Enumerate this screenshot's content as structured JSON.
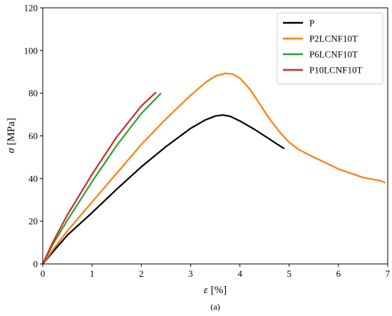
{
  "figure_label": "(a)",
  "chart_data": {
    "type": "line",
    "xlabel_symbol": "ε",
    "xlabel_unit": "[%]",
    "ylabel_symbol": "σ",
    "ylabel_unit": "[MPa]",
    "xlim": [
      0,
      7
    ],
    "ylim": [
      0,
      120
    ],
    "xticks": [
      0,
      1,
      2,
      3,
      4,
      5,
      6,
      7
    ],
    "yticks": [
      0,
      20,
      40,
      60,
      80,
      100,
      120
    ],
    "grid": false,
    "legend_position": "top-right",
    "series": [
      {
        "name": "P",
        "color": "#000000",
        "x": [
          0,
          0.2,
          0.5,
          1.0,
          1.5,
          2.0,
          2.5,
          3.0,
          3.3,
          3.5,
          3.65,
          3.8,
          4.0,
          4.3,
          4.6,
          4.9
        ],
        "y": [
          0,
          5.5,
          13.5,
          24,
          35,
          45.5,
          55,
          63.5,
          67.5,
          69.3,
          69.8,
          69.2,
          67,
          63,
          58.5,
          54
        ]
      },
      {
        "name": "P2LCNF10T",
        "color": "#ff7f0e",
        "x": [
          0,
          0.2,
          0.5,
          1.0,
          1.5,
          2.0,
          2.5,
          3.0,
          3.3,
          3.5,
          3.7,
          3.85,
          4.0,
          4.2,
          4.4,
          4.6,
          4.8,
          5.0,
          5.2,
          5.5,
          6.0,
          6.5,
          6.85,
          6.95
        ],
        "y": [
          0,
          6.5,
          15.5,
          29,
          42.5,
          56,
          68,
          79,
          85,
          88,
          89.3,
          89,
          87,
          82,
          75,
          68,
          62,
          57,
          53.5,
          50,
          44.5,
          40.5,
          39,
          38
        ]
      },
      {
        "name": "P6LCNF10T",
        "color": "#2ca02c",
        "x": [
          0,
          0.2,
          0.5,
          1.0,
          1.5,
          2.0,
          2.4
        ],
        "y": [
          0,
          9,
          20.5,
          38.5,
          55.5,
          70.5,
          80
        ]
      },
      {
        "name": "P10LCNF10T",
        "color": "#d62728",
        "x": [
          0,
          0.2,
          0.5,
          1.0,
          1.5,
          2.0,
          2.3
        ],
        "y": [
          0,
          10,
          23,
          42,
          59.5,
          74,
          80.5
        ]
      }
    ]
  }
}
